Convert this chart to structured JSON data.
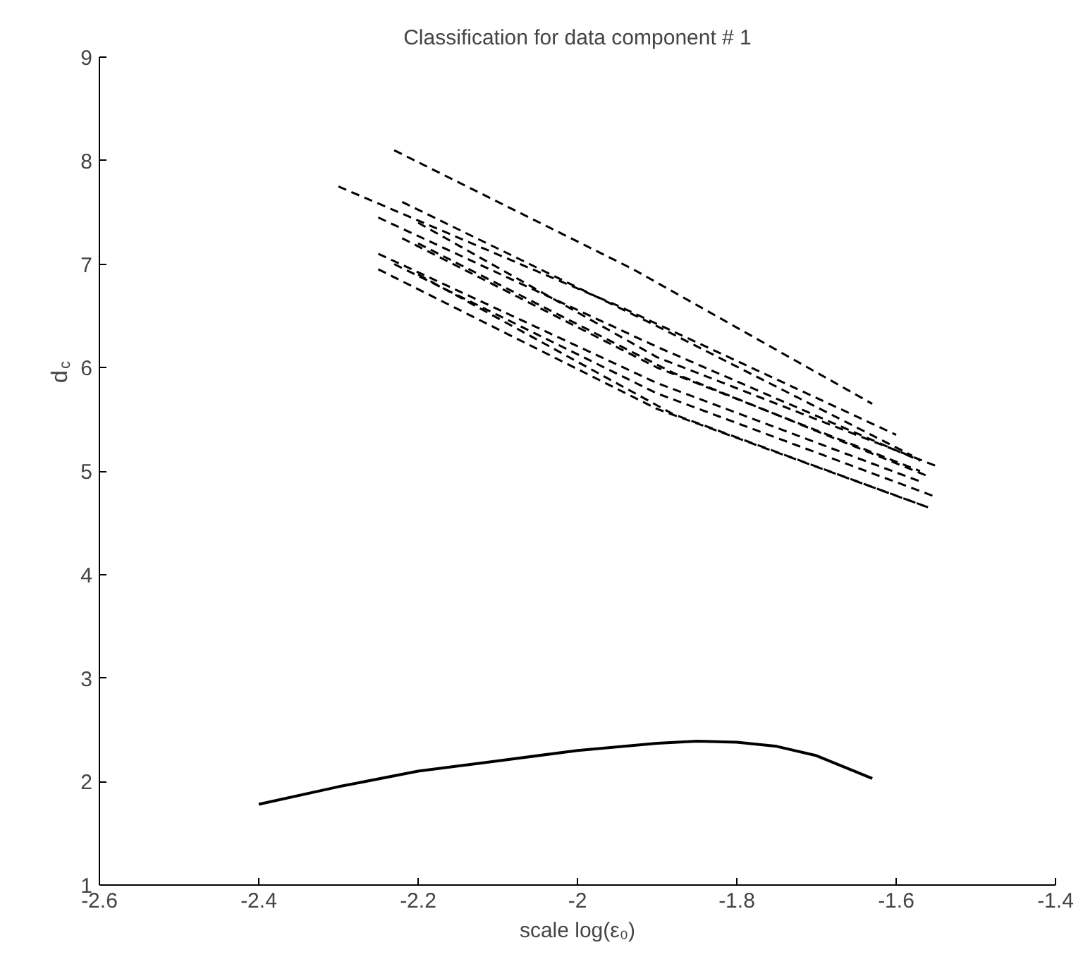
{
  "chart_data": {
    "type": "line",
    "title": "Classification for data component # 1",
    "xlabel": "scale log(ε₀)",
    "ylabel": "d$_{c}$",
    "xlim": [
      -2.6,
      -1.4
    ],
    "xticks": [
      -2.6,
      -2.4,
      -2.2,
      -2,
      -1.8,
      -1.6,
      -1.4
    ],
    "ylim": [
      1,
      9
    ],
    "yticks": [
      1,
      2,
      3,
      4,
      5,
      6,
      7,
      8,
      9
    ],
    "grid": false,
    "series": [
      {
        "color": "#000000",
        "line_style": "solid",
        "x": [
          -2.4,
          -2.3,
          -2.2,
          -2.1,
          -2.0,
          -1.9,
          -1.85,
          -1.8,
          -1.75,
          -1.7,
          -1.63
        ],
        "values": [
          1.78,
          1.95,
          2.1,
          2.2,
          2.3,
          2.37,
          2.39,
          2.38,
          2.34,
          2.25,
          2.03
        ]
      },
      {
        "color": "#000000",
        "line_style": "dashed",
        "x": [
          -2.23,
          -1.93,
          -1.63
        ],
        "values": [
          8.1,
          6.95,
          5.65
        ]
      },
      {
        "color": "#000000",
        "line_style": "dashed",
        "x": [
          -2.3,
          -1.95,
          -1.6
        ],
        "values": [
          7.75,
          6.6,
          5.35
        ]
      },
      {
        "color": "#000000",
        "line_style": "dashed",
        "x": [
          -2.22,
          -1.9,
          -1.58
        ],
        "values": [
          7.6,
          6.4,
          5.15
        ]
      },
      {
        "color": "#000000",
        "line_style": "dashed",
        "x": [
          -2.25,
          -1.9,
          -1.57
        ],
        "values": [
          7.45,
          6.2,
          5.1
        ]
      },
      {
        "color": "#000000",
        "line_style": "dashed",
        "x": [
          -2.2,
          -1.9,
          -1.55
        ],
        "values": [
          7.4,
          6.1,
          5.05
        ]
      },
      {
        "color": "#000000",
        "line_style": "dashed",
        "x": [
          -2.22,
          -1.9,
          -1.57
        ],
        "values": [
          7.25,
          6.0,
          5.0
        ]
      },
      {
        "color": "#000000",
        "line_style": "dashed",
        "x": [
          -2.2,
          -1.88,
          -1.56
        ],
        "values": [
          7.2,
          5.95,
          4.95
        ]
      },
      {
        "color": "#000000",
        "line_style": "dashed",
        "x": [
          -2.25,
          -1.9,
          -1.57
        ],
        "values": [
          7.1,
          5.85,
          4.9
        ]
      },
      {
        "color": "#000000",
        "line_style": "dashed",
        "x": [
          -2.23,
          -1.9,
          -1.55
        ],
        "values": [
          7.0,
          5.75,
          4.75
        ]
      },
      {
        "color": "#000000",
        "line_style": "dashed",
        "x": [
          -2.25,
          -1.9,
          -1.56
        ],
        "values": [
          6.95,
          5.6,
          4.65
        ]
      },
      {
        "color": "#000000",
        "line_style": "dashed",
        "x": [
          -2.2,
          -1.88,
          -1.56
        ],
        "values": [
          6.9,
          5.55,
          4.65
        ]
      }
    ]
  }
}
